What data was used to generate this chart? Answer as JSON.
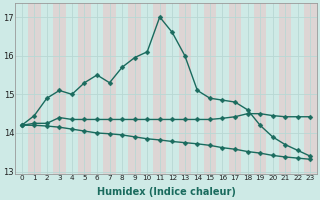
{
  "xlabel": "Humidex (Indice chaleur)",
  "background_color": "#ceeae6",
  "grid_color_v": "#b8d8d4",
  "grid_color_h": "#b8d8d4",
  "stripe_color": "#e8c8c8",
  "line_color": "#1a6b5e",
  "x": [
    0,
    1,
    2,
    3,
    4,
    5,
    6,
    7,
    8,
    9,
    10,
    11,
    12,
    13,
    14,
    15,
    16,
    17,
    18,
    19,
    20,
    21,
    22,
    23
  ],
  "y_max": [
    14.2,
    14.45,
    14.9,
    15.1,
    15.0,
    15.3,
    15.5,
    15.3,
    15.7,
    15.95,
    16.1,
    17.0,
    16.6,
    16.0,
    15.1,
    14.9,
    14.85,
    14.8,
    14.6,
    14.2,
    13.9,
    13.7,
    13.55,
    13.4
  ],
  "y_flat": [
    14.2,
    14.25,
    14.25,
    14.4,
    14.35,
    14.35,
    14.35,
    14.35,
    14.35,
    14.35,
    14.35,
    14.35,
    14.35,
    14.35,
    14.35,
    14.35,
    14.38,
    14.42,
    14.5,
    14.5,
    14.45,
    14.42,
    14.42,
    14.42
  ],
  "y_decline": [
    14.2,
    14.2,
    14.18,
    14.15,
    14.1,
    14.05,
    14.0,
    13.98,
    13.95,
    13.9,
    13.85,
    13.82,
    13.78,
    13.75,
    13.72,
    13.68,
    13.62,
    13.58,
    13.52,
    13.48,
    13.42,
    13.38,
    13.35,
    13.32
  ],
  "ylim": [
    12.95,
    17.35
  ],
  "yticks": [
    13,
    14,
    15,
    16,
    17
  ],
  "xlim": [
    -0.5,
    23.5
  ],
  "markersize": 2.5,
  "linewidth": 1.0
}
